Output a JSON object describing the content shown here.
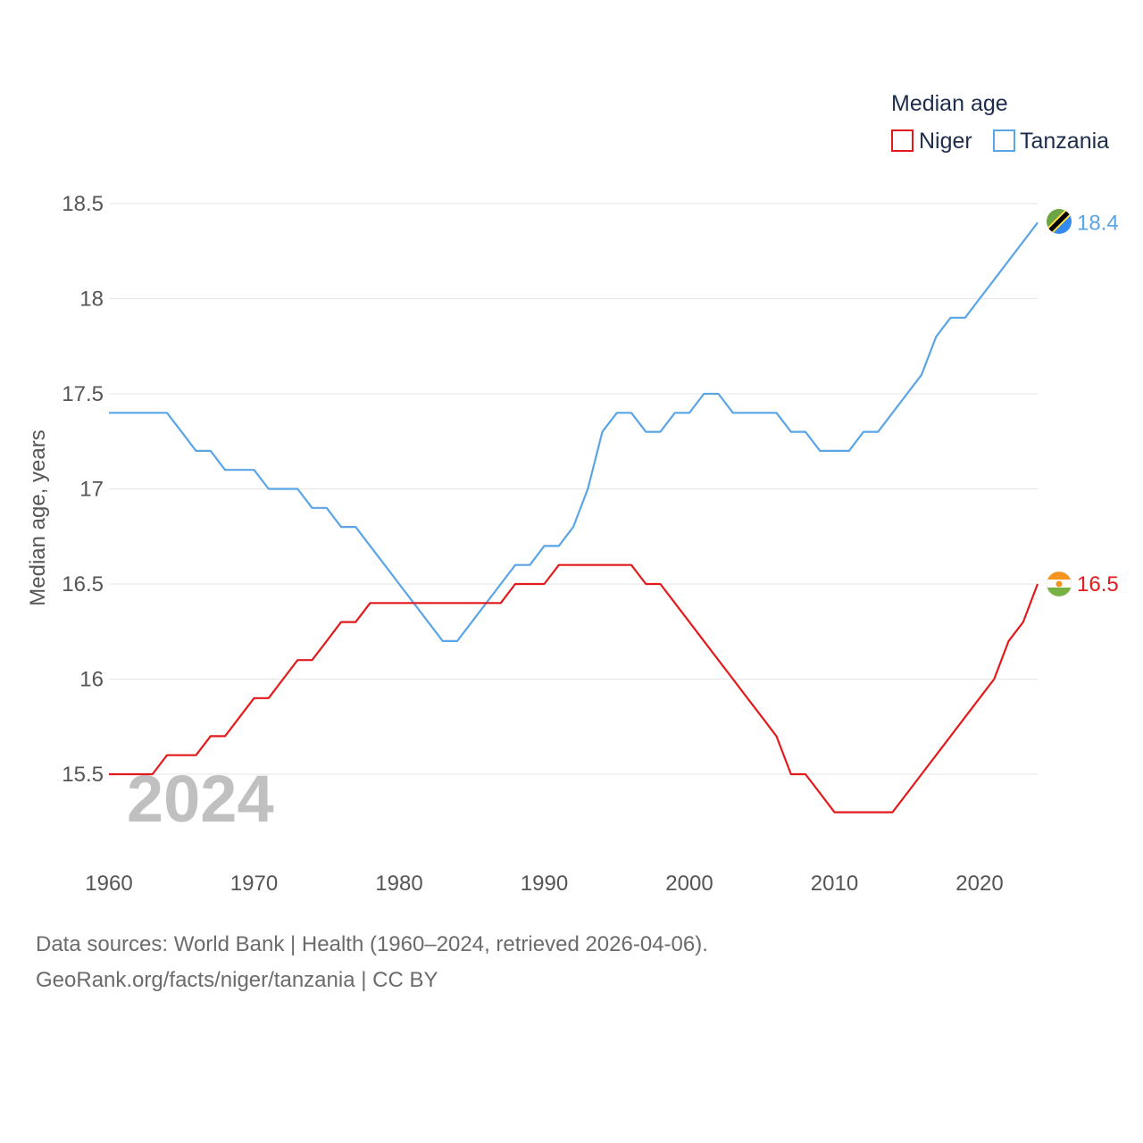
{
  "chart_data": {
    "type": "line",
    "ylabel": "Median age, years",
    "xlim": [
      1960,
      2024
    ],
    "ylim": [
      15.2,
      18.6
    ],
    "y_ticks": [
      15.5,
      16,
      16.5,
      17,
      17.5,
      18,
      18.5
    ],
    "y_tick_labels": [
      "15.5",
      "16",
      "16.5",
      "17",
      "17.5",
      "18",
      "18.5"
    ],
    "x_ticks": [
      1960,
      1970,
      1980,
      1990,
      2000,
      2010,
      2020
    ],
    "x_tick_labels": [
      "1960",
      "1970",
      "1980",
      "1990",
      "2000",
      "2010",
      "2020"
    ],
    "current_year_label": "2024",
    "legend": {
      "title": "Median age",
      "placement": "top-right"
    },
    "x": [
      1960,
      1961,
      1962,
      1963,
      1964,
      1965,
      1966,
      1967,
      1968,
      1969,
      1970,
      1971,
      1972,
      1973,
      1974,
      1975,
      1976,
      1977,
      1978,
      1979,
      1980,
      1981,
      1982,
      1983,
      1984,
      1985,
      1986,
      1987,
      1988,
      1989,
      1990,
      1991,
      1992,
      1993,
      1994,
      1995,
      1996,
      1997,
      1998,
      1999,
      2000,
      2001,
      2002,
      2003,
      2004,
      2005,
      2006,
      2007,
      2008,
      2009,
      2010,
      2011,
      2012,
      2013,
      2014,
      2015,
      2016,
      2017,
      2018,
      2019,
      2020,
      2021,
      2022,
      2023,
      2024
    ],
    "series": [
      {
        "name": "Niger",
        "color": "#e31a1c",
        "end_label": "16.5",
        "values": [
          15.5,
          15.5,
          15.5,
          15.5,
          15.6,
          15.6,
          15.6,
          15.7,
          15.7,
          15.8,
          15.9,
          15.9,
          16.0,
          16.1,
          16.1,
          16.2,
          16.3,
          16.3,
          16.4,
          16.4,
          16.4,
          16.4,
          16.4,
          16.4,
          16.4,
          16.4,
          16.4,
          16.4,
          16.5,
          16.5,
          16.5,
          16.6,
          16.6,
          16.6,
          16.6,
          16.6,
          16.6,
          16.5,
          16.5,
          16.4,
          16.3,
          16.2,
          16.1,
          16.0,
          15.9,
          15.8,
          15.7,
          15.5,
          15.5,
          15.4,
          15.3,
          15.3,
          15.3,
          15.3,
          15.3,
          15.4,
          15.5,
          15.6,
          15.7,
          15.8,
          15.9,
          16.0,
          16.2,
          16.3,
          16.5
        ]
      },
      {
        "name": "Tanzania",
        "color": "#5aa5e6",
        "end_label": "18.4",
        "values": [
          17.4,
          17.4,
          17.4,
          17.4,
          17.4,
          17.3,
          17.2,
          17.2,
          17.1,
          17.1,
          17.1,
          17.0,
          17.0,
          17.0,
          16.9,
          16.9,
          16.8,
          16.8,
          16.7,
          16.6,
          16.5,
          16.4,
          16.3,
          16.2,
          16.2,
          16.3,
          16.4,
          16.5,
          16.6,
          16.6,
          16.7,
          16.7,
          16.8,
          17.0,
          17.3,
          17.4,
          17.4,
          17.3,
          17.3,
          17.4,
          17.4,
          17.5,
          17.5,
          17.4,
          17.4,
          17.4,
          17.4,
          17.3,
          17.3,
          17.2,
          17.2,
          17.2,
          17.3,
          17.3,
          17.4,
          17.5,
          17.6,
          17.8,
          17.9,
          17.9,
          18.0,
          18.1,
          18.2,
          18.3,
          18.4
        ]
      }
    ]
  },
  "flags": {
    "niger": {
      "top": "#f7941d",
      "middle": "#ffffff",
      "bottom": "#78b242",
      "emblem": "#f7941d"
    },
    "tanzania": {
      "green": "#6da544",
      "blue": "#338af3",
      "stripe": "#000000",
      "border": "#ffda44"
    }
  },
  "footer": {
    "line1": "Data sources: World Bank | Health (1960–2024, retrieved 2026-04-06).",
    "line2": "GeoRank.org/facts/niger/tanzania | CC BY"
  }
}
